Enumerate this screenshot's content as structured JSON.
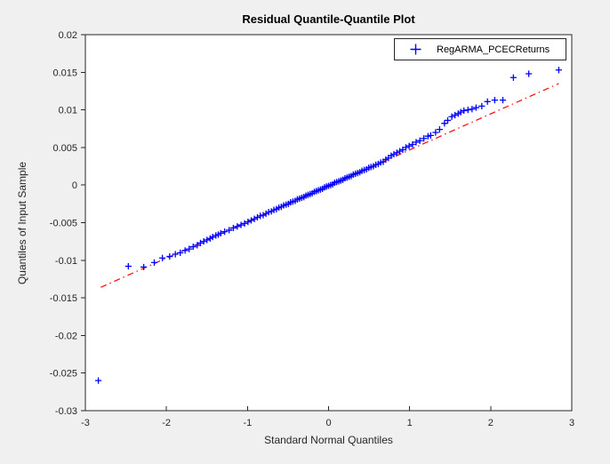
{
  "window": {
    "background": "#f0f0f0"
  },
  "chart_data": {
    "type": "scatter",
    "title": "Residual Quantile-Quantile Plot",
    "xlabel": "Standard Normal Quantiles",
    "ylabel": "Quantiles of Input Sample",
    "xlim": [
      -3,
      3
    ],
    "ylim": [
      -0.03,
      0.02
    ],
    "grid": false,
    "plot_background": "#ffffff",
    "axes_color": "#262626",
    "x_ticks": [
      {
        "value": -3,
        "label": "-3"
      },
      {
        "value": -2,
        "label": "-2"
      },
      {
        "value": -1,
        "label": "-1"
      },
      {
        "value": 0,
        "label": "0"
      },
      {
        "value": 1,
        "label": "1"
      },
      {
        "value": 2,
        "label": "2"
      },
      {
        "value": 3,
        "label": "3"
      }
    ],
    "y_ticks": [
      {
        "value": 0.02,
        "label": "0.02"
      },
      {
        "value": 0.015,
        "label": "0.015"
      },
      {
        "value": 0.01,
        "label": "0.01"
      },
      {
        "value": 0.005,
        "label": "0.005"
      },
      {
        "value": 0,
        "label": "0"
      },
      {
        "value": -0.005,
        "label": "-0.005"
      },
      {
        "value": -0.01,
        "label": "-0.01"
      },
      {
        "value": -0.015,
        "label": "-0.015"
      },
      {
        "value": -0.02,
        "label": "-0.02"
      },
      {
        "value": -0.025,
        "label": "-0.025"
      },
      {
        "value": -0.03,
        "label": "-0.03"
      }
    ],
    "legend": {
      "position": "top-right-inside",
      "entries": [
        {
          "label": "RegARMA_PCECReturns",
          "marker": "+",
          "color": "#0000ff"
        }
      ]
    },
    "series": [
      {
        "name": "RegARMA_PCECReturns",
        "kind": "scatter",
        "marker": "+",
        "color": "#0000ff",
        "points": [
          [
            -2.84,
            -0.026
          ],
          [
            -2.47,
            -0.0108
          ],
          [
            -2.28,
            -0.0109
          ],
          [
            -2.15,
            -0.0103
          ],
          [
            -2.05,
            -0.0097
          ],
          [
            -1.96,
            -0.0095
          ],
          [
            -1.89,
            -0.0092
          ],
          [
            -1.83,
            -0.009
          ],
          [
            -1.77,
            -0.0087
          ],
          [
            -1.72,
            -0.0085
          ],
          [
            -1.67,
            -0.0082
          ],
          [
            -1.62,
            -0.008
          ],
          [
            -1.58,
            -0.0077
          ],
          [
            -1.54,
            -0.0075
          ],
          [
            -1.5,
            -0.0073
          ],
          [
            -1.46,
            -0.0071
          ],
          [
            -1.43,
            -0.0069
          ],
          [
            -1.39,
            -0.0067
          ],
          [
            -1.36,
            -0.0066
          ],
          [
            -1.33,
            -0.0064
          ],
          [
            -1.282,
            -0.0062
          ],
          [
            -1.227,
            -0.006
          ],
          [
            -1.175,
            -0.0057
          ],
          [
            -1.126,
            -0.0055
          ],
          [
            -1.08,
            -0.0053
          ],
          [
            -1.036,
            -0.0051
          ],
          [
            -0.994,
            -0.0049
          ],
          [
            -0.954,
            -0.0047
          ],
          [
            -0.915,
            -0.0045
          ],
          [
            -0.878,
            -0.0043
          ],
          [
            -0.842,
            -0.0041
          ],
          [
            -0.806,
            -0.004
          ],
          [
            -0.772,
            -0.0038
          ],
          [
            -0.739,
            -0.0036
          ],
          [
            -0.706,
            -0.0035
          ],
          [
            -0.674,
            -0.0033
          ],
          [
            -0.643,
            -0.0032
          ],
          [
            -0.613,
            -0.003
          ],
          [
            -0.583,
            -0.0029
          ],
          [
            -0.553,
            -0.0027
          ],
          [
            -0.524,
            -0.0026
          ],
          [
            -0.496,
            -0.0025
          ],
          [
            -0.468,
            -0.0023
          ],
          [
            -0.44,
            -0.0022
          ],
          [
            -0.412,
            -0.0021
          ],
          [
            -0.385,
            -0.0019
          ],
          [
            -0.358,
            -0.0018
          ],
          [
            -0.332,
            -0.0017
          ],
          [
            -0.305,
            -0.0016
          ],
          [
            -0.279,
            -0.0014
          ],
          [
            -0.253,
            -0.0013
          ],
          [
            -0.228,
            -0.0012
          ],
          [
            -0.202,
            -0.0011
          ],
          [
            -0.176,
            -0.0009
          ],
          [
            -0.151,
            -0.0008
          ],
          [
            -0.126,
            -0.0007
          ],
          [
            -0.1,
            -0.0006
          ],
          [
            -0.075,
            -0.0005
          ],
          [
            -0.05,
            -0.0003
          ],
          [
            -0.025,
            -0.0002
          ],
          [
            0,
            -0.0001
          ],
          [
            0.025,
            0
          ],
          [
            0.05,
            0.0001
          ],
          [
            0.075,
            0.0003
          ],
          [
            0.1,
            0.0004
          ],
          [
            0.126,
            0.0005
          ],
          [
            0.151,
            0.0006
          ],
          [
            0.176,
            0.0007
          ],
          [
            0.202,
            0.0009
          ],
          [
            0.228,
            0.001
          ],
          [
            0.253,
            0.0011
          ],
          [
            0.279,
            0.0012
          ],
          [
            0.305,
            0.0014
          ],
          [
            0.332,
            0.0015
          ],
          [
            0.358,
            0.0016
          ],
          [
            0.385,
            0.0017
          ],
          [
            0.412,
            0.0019
          ],
          [
            0.44,
            0.002
          ],
          [
            0.468,
            0.0021
          ],
          [
            0.496,
            0.0023
          ],
          [
            0.524,
            0.0024
          ],
          [
            0.553,
            0.0025
          ],
          [
            0.583,
            0.0027
          ],
          [
            0.613,
            0.0028
          ],
          [
            0.643,
            0.003
          ],
          [
            0.674,
            0.0031
          ],
          [
            0.706,
            0.0034
          ],
          [
            0.739,
            0.0036
          ],
          [
            0.772,
            0.0039
          ],
          [
            0.806,
            0.0041
          ],
          [
            0.842,
            0.0043
          ],
          [
            0.878,
            0.0045
          ],
          [
            0.915,
            0.0047
          ],
          [
            0.954,
            0.005
          ],
          [
            0.994,
            0.0052
          ],
          [
            1.036,
            0.0054
          ],
          [
            1.08,
            0.0057
          ],
          [
            1.126,
            0.0059
          ],
          [
            1.175,
            0.0062
          ],
          [
            1.227,
            0.0065
          ],
          [
            1.26,
            0.0066
          ],
          [
            1.32,
            0.007
          ],
          [
            1.37,
            0.0074
          ],
          [
            1.43,
            0.0082
          ],
          [
            1.47,
            0.0086
          ],
          [
            1.52,
            0.0091
          ],
          [
            1.56,
            0.0093
          ],
          [
            1.6,
            0.0095
          ],
          [
            1.63,
            0.0097
          ],
          [
            1.67,
            0.0099
          ],
          [
            1.72,
            0.01
          ],
          [
            1.77,
            0.0101
          ],
          [
            1.82,
            0.0103
          ],
          [
            1.89,
            0.0105
          ],
          [
            1.96,
            0.0111
          ],
          [
            2.05,
            0.0113
          ],
          [
            2.15,
            0.0113
          ],
          [
            2.28,
            0.0143
          ],
          [
            2.47,
            0.0148
          ],
          [
            2.84,
            0.0153
          ]
        ]
      },
      {
        "name": "quartile-reference-line",
        "kind": "line",
        "style": "dash-dot",
        "color": "#ff0000",
        "points": [
          [
            -2.81,
            -0.0136
          ],
          [
            2.84,
            0.0135
          ]
        ]
      }
    ]
  }
}
